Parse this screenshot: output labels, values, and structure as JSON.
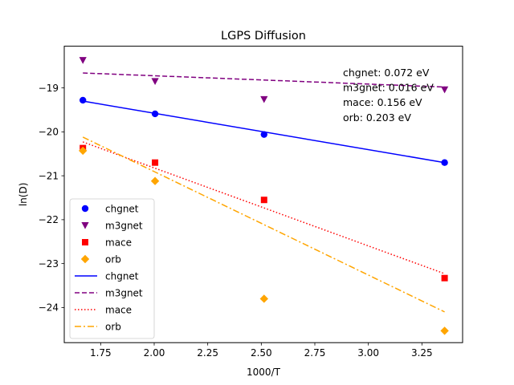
{
  "chart_data": {
    "type": "scatter",
    "title": "LGPS Diffusion",
    "xlabel": "1000/T",
    "ylabel": "ln(D)",
    "xlim": [
      1.58,
      3.44
    ],
    "ylim": [
      -24.8,
      -18.05
    ],
    "xticks": [
      1.75,
      2.0,
      2.25,
      2.5,
      2.75,
      3.0,
      3.25
    ],
    "yticks": [
      -24,
      -23,
      -22,
      -21,
      -20,
      -19
    ],
    "xtick_labels": [
      "1.75",
      "2.00",
      "2.25",
      "2.50",
      "2.75",
      "3.00",
      "3.25"
    ],
    "ytick_labels": [
      "−24",
      "−23",
      "−22",
      "−21",
      "−20",
      "−19"
    ],
    "grid": false,
    "legend_position": "lower-left",
    "series": [
      {
        "name": "chgnet",
        "kind": "points",
        "marker": "circle",
        "color": "#0000ff",
        "x": [
          1.667,
          2.004,
          2.513,
          3.356
        ],
        "y": [
          -19.28,
          -19.59,
          -20.06,
          -20.7
        ]
      },
      {
        "name": "m3gnet",
        "kind": "points",
        "marker": "triangle-down",
        "color": "#800080",
        "x": [
          1.667,
          2.004,
          2.513,
          3.356
        ],
        "y": [
          -18.37,
          -18.85,
          -19.26,
          -19.04
        ]
      },
      {
        "name": "mace",
        "kind": "points",
        "marker": "square",
        "color": "#ff0000",
        "x": [
          1.667,
          2.004,
          2.513,
          3.356
        ],
        "y": [
          -20.37,
          -20.7,
          -21.55,
          -23.33
        ]
      },
      {
        "name": "orb",
        "kind": "points",
        "marker": "diamond",
        "color": "#ffa500",
        "x": [
          1.667,
          2.004,
          2.513,
          3.356
        ],
        "y": [
          -20.43,
          -21.12,
          -23.8,
          -24.53
        ]
      },
      {
        "name": "chgnet",
        "kind": "line",
        "dash": "solid",
        "color": "#0000ff",
        "x": [
          1.667,
          3.356
        ],
        "y": [
          -19.3,
          -20.7
        ]
      },
      {
        "name": "m3gnet",
        "kind": "line",
        "dash": "dashed",
        "color": "#800080",
        "x": [
          1.667,
          3.356
        ],
        "y": [
          -18.66,
          -18.98
        ]
      },
      {
        "name": "mace",
        "kind": "line",
        "dash": "dotted",
        "color": "#ff0000",
        "x": [
          1.667,
          3.356
        ],
        "y": [
          -20.23,
          -23.23
        ]
      },
      {
        "name": "orb",
        "kind": "line",
        "dash": "dashdot",
        "color": "#ffa500",
        "x": [
          1.667,
          3.356
        ],
        "y": [
          -20.12,
          -24.1
        ]
      }
    ],
    "annotations": [
      "chgnet: 0.072 eV",
      "m3gnet: 0.016 eV",
      "mace: 0.156 eV",
      "orb: 0.203 eV"
    ]
  }
}
